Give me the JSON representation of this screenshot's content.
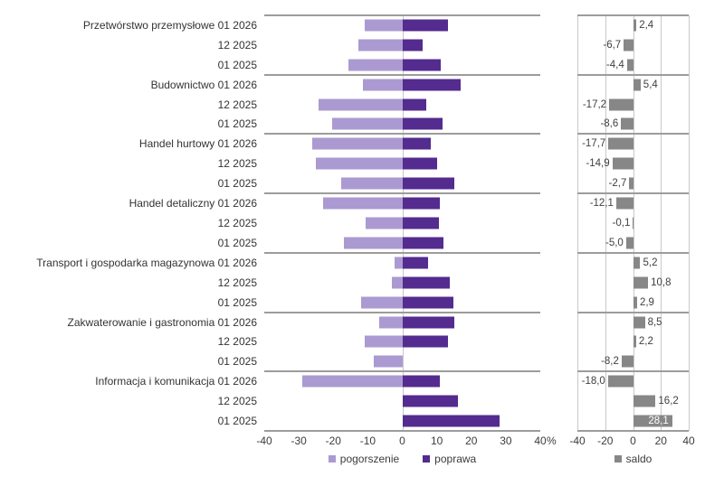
{
  "chart_data": {
    "type": "bar",
    "orientation": "horizontal-diverging",
    "title": "",
    "panels": {
      "detail": {
        "xlim": [
          -40,
          40
        ],
        "ticks": [
          "-40",
          "-30",
          "-20",
          "-10",
          "0",
          "10",
          "20",
          "30",
          "40"
        ],
        "unit": "%",
        "grid": "zero-line-only",
        "legend": [
          {
            "label": "pogorszenie",
            "color": "#ab9ad1"
          },
          {
            "label": "poprawa",
            "color": "#542b8f"
          }
        ]
      },
      "saldo": {
        "xlim": [
          -40,
          40
        ],
        "ticks": [
          "-40",
          "-20",
          "0",
          "20",
          "40"
        ],
        "unit": "",
        "grid": "vertical-gridlines",
        "legend": [
          {
            "label": "saldo",
            "color": "#878787"
          }
        ]
      }
    },
    "groups": [
      {
        "sector": "Przetwórstwo przemysłowe",
        "rows": [
          {
            "period": "01 2026",
            "pogorszenie": 10.8,
            "poprawa": 13.2,
            "saldo": 2.4,
            "saldo_label": "2,4"
          },
          {
            "period": "12 2025",
            "pogorszenie": 12.7,
            "poprawa": 6.0,
            "saldo": -6.7,
            "saldo_label": "-6,7"
          },
          {
            "period": "01 2025",
            "pogorszenie": 15.5,
            "poprawa": 11.1,
            "saldo": -4.4,
            "saldo_label": "-4,4"
          }
        ]
      },
      {
        "sector": "Budownictwo",
        "rows": [
          {
            "period": "01 2026",
            "pogorszenie": 11.5,
            "poprawa": 16.9,
            "saldo": 5.4,
            "saldo_label": "5,4"
          },
          {
            "period": "12 2025",
            "pogorszenie": 24.2,
            "poprawa": 7.0,
            "saldo": -17.2,
            "saldo_label": "-17,2"
          },
          {
            "period": "01 2025",
            "pogorszenie": 20.4,
            "poprawa": 11.8,
            "saldo": -8.6,
            "saldo_label": "-8,6"
          }
        ]
      },
      {
        "sector": "Handel hurtowy",
        "rows": [
          {
            "period": "01 2026",
            "pogorszenie": 26.0,
            "poprawa": 8.3,
            "saldo": -17.7,
            "saldo_label": "-17,7"
          },
          {
            "period": "12 2025",
            "pogorszenie": 25.0,
            "poprawa": 10.1,
            "saldo": -14.9,
            "saldo_label": "-14,9"
          },
          {
            "period": "01 2025",
            "pogorszenie": 17.7,
            "poprawa": 15.0,
            "saldo": -2.7,
            "saldo_label": "-2,7"
          }
        ]
      },
      {
        "sector": "Handel detaliczny",
        "rows": [
          {
            "period": "01 2026",
            "pogorszenie": 23.0,
            "poprawa": 10.9,
            "saldo": -12.1,
            "saldo_label": "-12,1"
          },
          {
            "period": "12 2025",
            "pogorszenie": 10.6,
            "poprawa": 10.5,
            "saldo": -0.1,
            "saldo_label": "-0,1"
          },
          {
            "period": "01 2025",
            "pogorszenie": 17.0,
            "poprawa": 12.0,
            "saldo": -5.0,
            "saldo_label": "-5,0"
          }
        ]
      },
      {
        "sector": "Transport i gospodarka magazynowa",
        "rows": [
          {
            "period": "01 2026",
            "pogorszenie": 2.3,
            "poprawa": 7.5,
            "saldo": 5.2,
            "saldo_label": "5,2"
          },
          {
            "period": "12 2025",
            "pogorszenie": 2.9,
            "poprawa": 13.7,
            "saldo": 10.8,
            "saldo_label": "10,8"
          },
          {
            "period": "01 2025",
            "pogorszenie": 12.0,
            "poprawa": 14.9,
            "saldo": 2.9,
            "saldo_label": "2,9"
          }
        ]
      },
      {
        "sector": "Zakwaterowanie i gastronomia",
        "rows": [
          {
            "period": "01 2026",
            "pogorszenie": 6.6,
            "poprawa": 15.1,
            "saldo": 8.5,
            "saldo_label": "8,5"
          },
          {
            "period": "12 2025",
            "pogorszenie": 11.0,
            "poprawa": 13.2,
            "saldo": 2.2,
            "saldo_label": "2,2"
          },
          {
            "period": "01 2025",
            "pogorszenie": 8.2,
            "poprawa": 0.0,
            "saldo": -8.2,
            "saldo_label": "-8,2"
          }
        ]
      },
      {
        "sector": "Informacja i komunikacja",
        "rows": [
          {
            "period": "01 2026",
            "pogorszenie": 29.0,
            "poprawa": 11.0,
            "saldo": -18.0,
            "saldo_label": "-18,0"
          },
          {
            "period": "12 2025",
            "pogorszenie": 0.0,
            "poprawa": 16.2,
            "saldo": 16.2,
            "saldo_label": "16,2"
          },
          {
            "period": "01 2025",
            "pogorszenie": 0.0,
            "poprawa": 28.1,
            "saldo": 28.1,
            "saldo_label": "28,1",
            "saldo_label_inside": true
          }
        ]
      }
    ]
  },
  "colors": {
    "pogorszenie": "#ab9ad1",
    "poprawa": "#542b8f",
    "saldo": "#878787",
    "separator": "#9c9c9c",
    "gridline": "#c9c9c9",
    "text": "#333333",
    "inside_label": "#ffffff",
    "background": "#ffffff"
  }
}
